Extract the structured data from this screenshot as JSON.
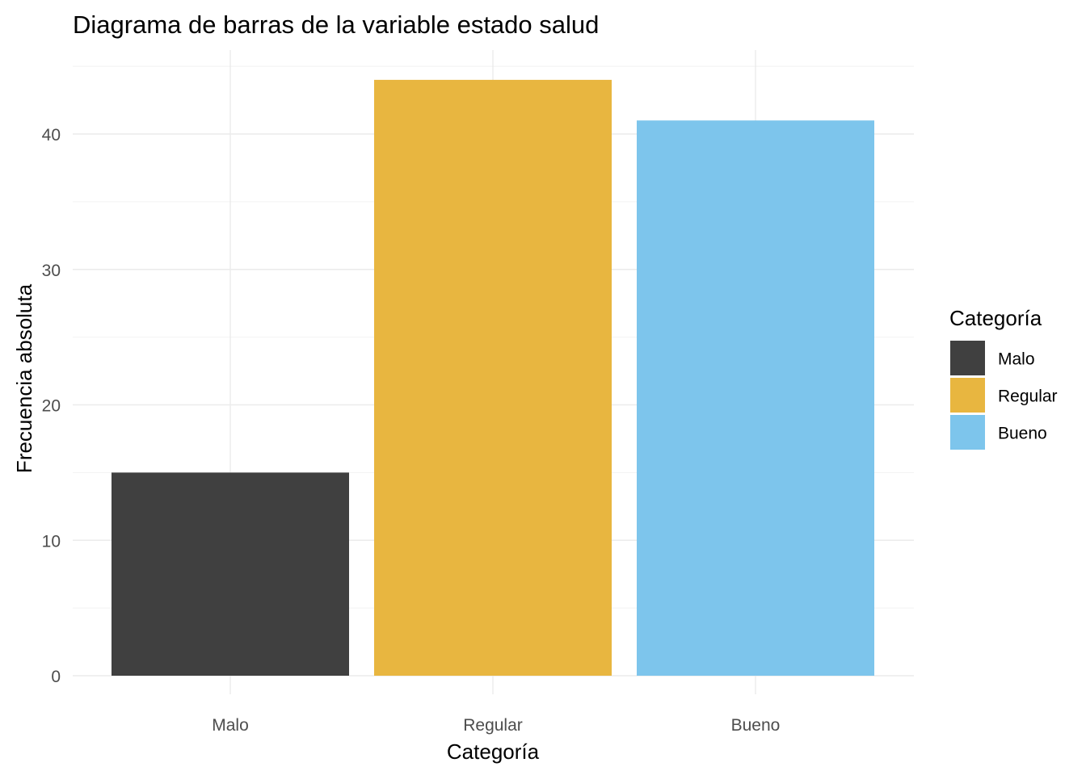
{
  "chart_data": {
    "type": "bar",
    "title": "Diagrama de barras de la variable estado salud",
    "xlabel": "Categoría",
    "ylabel": "Frecuencia absoluta",
    "categories": [
      "Malo",
      "Regular",
      "Bueno"
    ],
    "values": [
      15,
      44,
      41
    ],
    "colors": [
      "#404040",
      "#E8B640",
      "#7DC5EC"
    ],
    "ylim": [
      0,
      45
    ],
    "yticks": [
      0,
      10,
      20,
      30,
      40
    ],
    "ytick_labels": [
      "0",
      "10",
      "20",
      "30",
      "40"
    ],
    "grid": true,
    "legend": {
      "title": "Categoría",
      "placement": "right",
      "items": [
        "Malo",
        "Regular",
        "Bueno"
      ]
    }
  }
}
